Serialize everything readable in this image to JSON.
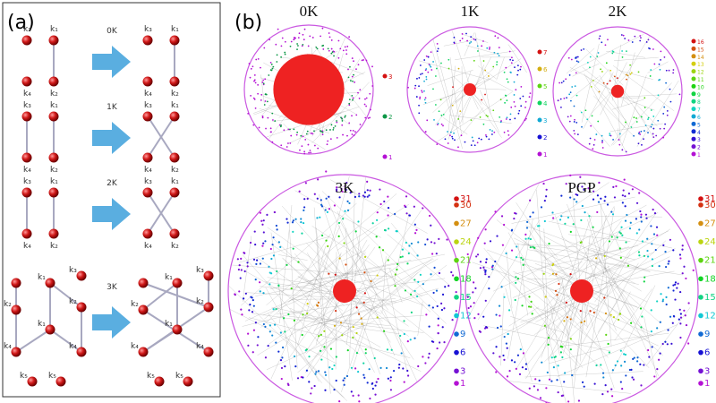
{
  "panel_a": {
    "label": "(a)",
    "rows": [
      {
        "label": "0K",
        "left_labels": [
          "k₃",
          "k₁",
          "k₄",
          "k₂"
        ],
        "right_labels": [
          "k₃",
          "k₁",
          "k₄",
          "k₂"
        ]
      },
      {
        "label": "1K",
        "left_labels": [
          "k₃",
          "k₁",
          "k₄",
          "k₂"
        ],
        "right_labels": [
          "k₃",
          "k₁",
          "k₄",
          "k₂"
        ]
      },
      {
        "label": "2K",
        "left_labels": [
          "k₃",
          "k₁",
          "k₄",
          "k₂"
        ],
        "right_labels": [
          "k₃",
          "k₁",
          "k₄",
          "k₂"
        ]
      },
      {
        "label": "3K",
        "left_labels": [
          "k₁",
          "k₃",
          "k₂",
          "k₂",
          "k₁",
          "k₄",
          "k₄",
          "k₅",
          "k₅"
        ],
        "right_labels": [
          "k₁",
          "k₃",
          "k₂",
          "k₂",
          "k₁",
          "k₄",
          "k₄",
          "k₅",
          "k₅"
        ]
      }
    ]
  },
  "panel_b": {
    "label": "(b)",
    "networks": [
      {
        "title": "0K",
        "legend": [
          3,
          2,
          1
        ]
      },
      {
        "title": "1K",
        "legend": [
          7,
          6,
          5,
          4,
          3,
          2,
          1
        ]
      },
      {
        "title": "2K",
        "legend": [
          16,
          15,
          14,
          13,
          12,
          11,
          10,
          9,
          8,
          7,
          6,
          5,
          4,
          3,
          2,
          1
        ]
      },
      {
        "title": "3K",
        "legend": [
          31,
          30,
          27,
          24,
          21,
          18,
          15,
          12,
          9,
          6,
          3,
          1
        ]
      },
      {
        "title": "PGP",
        "legend": [
          31,
          30,
          27,
          24,
          21,
          18,
          15,
          12,
          9,
          6,
          3,
          1
        ]
      }
    ]
  }
}
